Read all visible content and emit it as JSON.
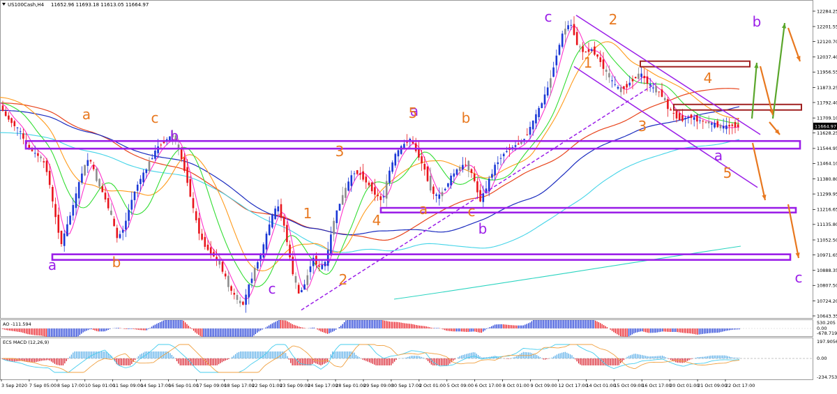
{
  "chart_data": {
    "type": "candlestick",
    "symbol_header": "US100Cash,H4",
    "ohlc_header": "11652.96 11693.18 11613.05 11664.97",
    "last_price": "11664.97",
    "price_ticks": [
      "12284.25",
      "12201.55",
      "12120.70",
      "12037.40",
      "11956.55",
      "11873.25",
      "11792.40",
      "11709.10",
      "11628.25",
      "11544.95",
      "11464.10",
      "11380.80",
      "11299.95",
      "11216.65",
      "11135.80",
      "11052.50",
      "10971.65",
      "10888.35",
      "10807.50",
      "10724.20",
      "10643.35"
    ],
    "date_ticks": [
      "3 Sep 2020",
      "7 Sep 05:00",
      "8 Sep 17:00",
      "10 Sep 01:00",
      "11 Sep 09:00",
      "14 Sep 17:00",
      "16 Sep 01:00",
      "17 Sep 09:00",
      "18 Sep 17:00",
      "22 Sep 01:00",
      "23 Sep 09:00",
      "24 Sep 17:00",
      "28 Sep 01:00",
      "29 Sep 09:00",
      "30 Sep 17:00",
      "2 Oct 01:00",
      "5 Oct 09:00",
      "6 Oct 17:00",
      "8 Oct 01:00",
      "9 Oct 09:00",
      "12 Oct 17:00",
      "14 Oct 01:00",
      "15 Oct 09:00",
      "16 Oct 17:00",
      "20 Oct 01:00",
      "21 Oct 09:00",
      "22 Oct 17:00"
    ],
    "ylim": [
      10610,
      12320
    ],
    "colors": {
      "bull": "#1a37d6",
      "bear": "#e8141c",
      "neutral": "#8c8c8c",
      "purple": "#9b1fe8",
      "orange": "#e8781f",
      "green": "#5aa62b",
      "maroon": "#a02020",
      "ma_fast": "#ff33cc",
      "ma_green": "#33dd33",
      "ma_orange": "#ff9a1a",
      "ma_red": "#e8441c",
      "ma_blue": "#1a2bbf",
      "ma_cyan": "#44d4e8",
      "ma_teal": "#2ad4c0"
    },
    "wave_labels": {
      "purple": [
        "a",
        "b",
        "c",
        "a",
        "c",
        "b",
        "b",
        "a",
        "c"
      ],
      "orange": [
        "a",
        "b",
        "c",
        "1",
        "2",
        "3",
        "4",
        "5",
        "b",
        "a",
        "c",
        "1",
        "2",
        "3",
        "4",
        "5"
      ]
    },
    "ao": {
      "title": "AO -111.594",
      "ticks": [
        "530.205",
        "0.00",
        "-678.719"
      ]
    },
    "macd": {
      "title": "ECS MACD (12,26,9)",
      "ticks": [
        "197.9056",
        "0.00",
        "-234.7533"
      ]
    }
  }
}
